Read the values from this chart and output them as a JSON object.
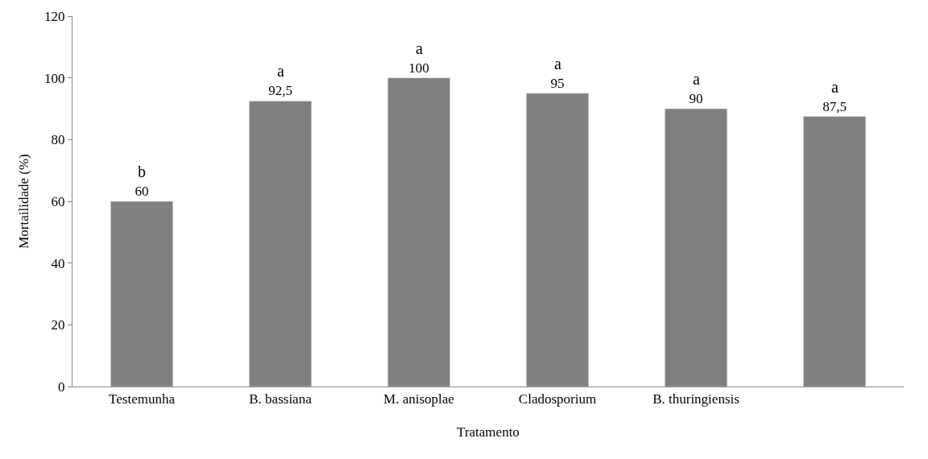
{
  "chart_data": {
    "type": "bar",
    "xlabel": "Tratamento",
    "ylabel": "Mortailidade (%)",
    "categories": [
      "Testemunha",
      "B. bassiana",
      "M. anisoplae",
      "Cladosporium",
      "B. thuringiensis",
      null
    ],
    "values": [
      60,
      92.5,
      100,
      95,
      90,
      87.5
    ],
    "value_labels": [
      "60",
      "92,5",
      "100",
      "95",
      "90",
      "87,5"
    ],
    "color": "#808080",
    "ylim": [
      0,
      120
    ],
    "yticks": [
      0,
      20,
      40,
      60,
      80,
      100,
      120
    ],
    "annotations": [
      "b",
      "a",
      "a",
      "a",
      "a",
      "a"
    ]
  }
}
